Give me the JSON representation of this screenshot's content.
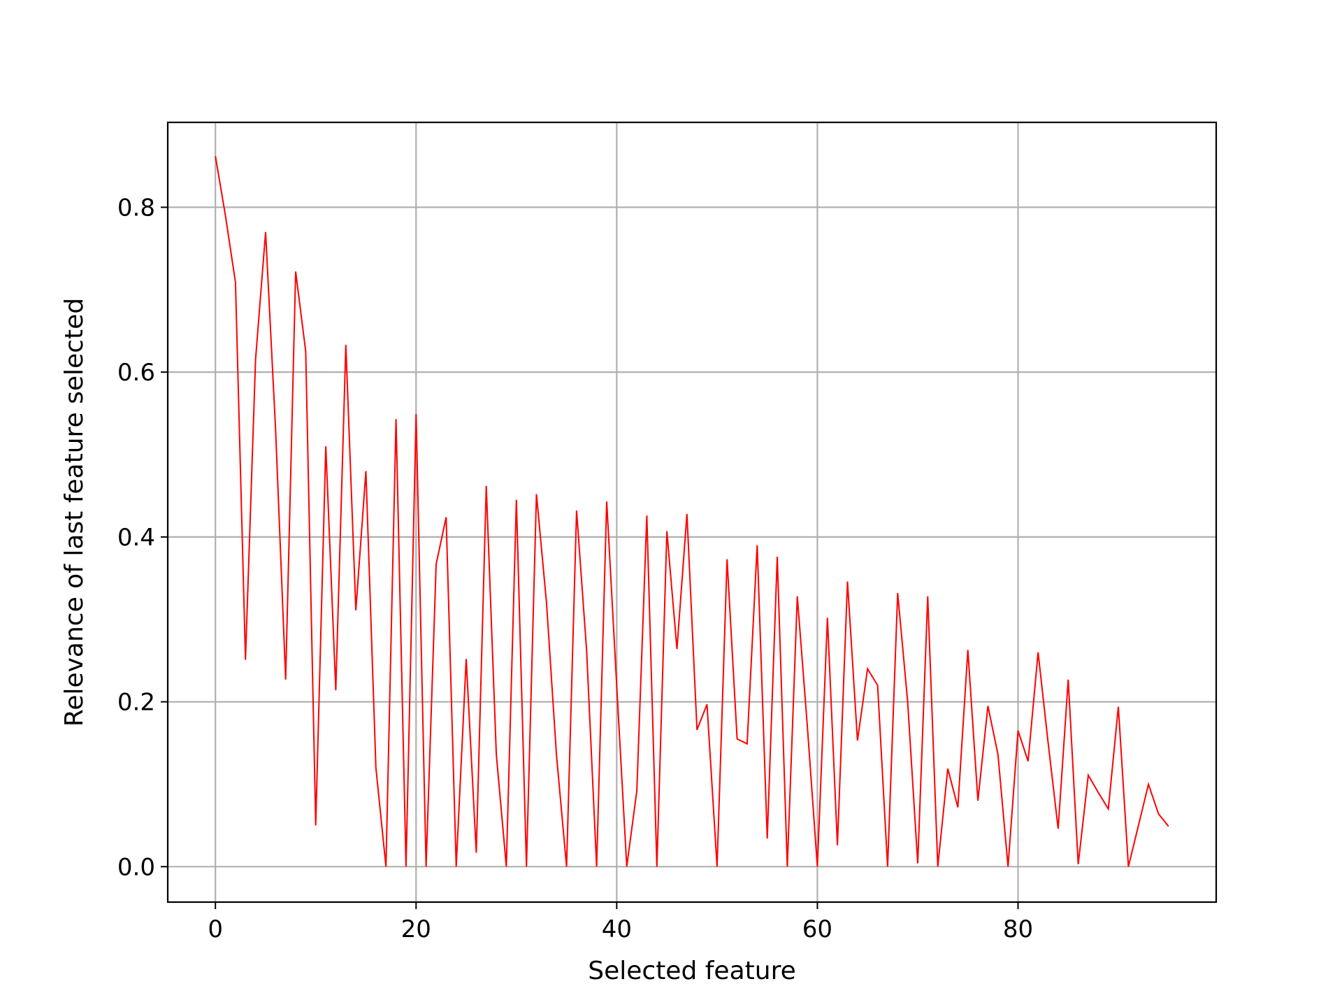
{
  "chart_data": {
    "type": "line",
    "title": "",
    "xlabel": "Selected feature",
    "ylabel": "Relevance of last feature selected",
    "xlim": [
      -4.75,
      99.75
    ],
    "ylim": [
      -0.043,
      0.903
    ],
    "xticks": [
      0,
      20,
      40,
      60,
      80
    ],
    "xtick_labels": [
      "0",
      "20",
      "40",
      "60",
      "80"
    ],
    "yticks": [
      0.0,
      0.2,
      0.4,
      0.6,
      0.8
    ],
    "ytick_labels": [
      "0.0",
      "0.2",
      "0.4",
      "0.6",
      "0.8"
    ],
    "grid": true,
    "legend": "none",
    "series": [
      {
        "color": "#ff0000",
        "x": [
          0,
          1,
          2,
          3,
          4,
          5,
          6,
          7,
          8,
          9,
          10,
          11,
          12,
          13,
          14,
          15,
          16,
          17,
          18,
          19,
          20,
          21,
          22,
          23,
          24,
          25,
          26,
          27,
          28,
          29,
          30,
          31,
          32,
          33,
          34,
          35,
          36,
          37,
          38,
          39,
          40,
          41,
          42,
          43,
          44,
          45,
          46,
          47,
          48,
          49,
          50,
          51,
          52,
          53,
          54,
          55,
          56,
          57,
          58,
          59,
          60,
          61,
          62,
          63,
          64,
          65,
          66,
          67,
          68,
          69,
          70,
          71,
          72,
          73,
          74,
          75,
          76,
          77,
          78,
          79,
          80,
          81,
          82,
          83,
          84,
          85,
          86,
          87,
          88,
          89,
          90,
          91,
          92,
          93,
          94,
          95
        ],
        "y": [
          0.862,
          0.79,
          0.709,
          0.251,
          0.615,
          0.77,
          0.53,
          0.227,
          0.722,
          0.625,
          0.05,
          0.51,
          0.214,
          0.633,
          0.311,
          0.48,
          0.12,
          0.0,
          0.543,
          0.0,
          0.549,
          0.0,
          0.367,
          0.424,
          0.0,
          0.252,
          0.017,
          0.462,
          0.136,
          0.0,
          0.445,
          0.0,
          0.452,
          0.32,
          0.135,
          0.0,
          0.432,
          0.262,
          0.0,
          0.443,
          0.22,
          0.0,
          0.092,
          0.426,
          0.0,
          0.407,
          0.264,
          0.428,
          0.166,
          0.197,
          0.0,
          0.373,
          0.155,
          0.149,
          0.39,
          0.034,
          0.376,
          0.0,
          0.328,
          0.17,
          0.0,
          0.302,
          0.026,
          0.346,
          0.153,
          0.24,
          0.22,
          0.0,
          0.332,
          0.2,
          0.004,
          0.328,
          0.0,
          0.119,
          0.072,
          0.263,
          0.08,
          0.195,
          0.136,
          0.0,
          0.165,
          0.128,
          0.26,
          0.15,
          0.046,
          0.227,
          0.003,
          0.111,
          0.09,
          0.07,
          0.194,
          0.0,
          0.05,
          0.1,
          0.064,
          0.049
        ]
      }
    ]
  }
}
